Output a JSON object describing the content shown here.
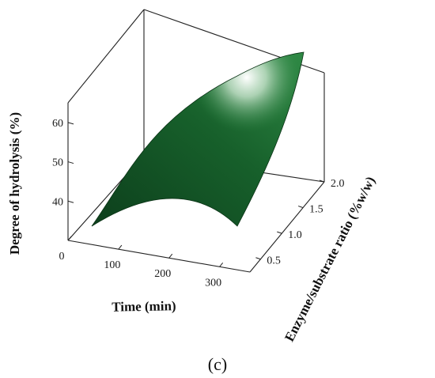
{
  "chart_data": {
    "type": "surface3d",
    "panel_label": "(c)",
    "xlabel": "Time (min)",
    "ylabel": "Enzyme/substrate ratio (%w/w)",
    "zlabel": "Degree of hydrolysis (%)",
    "x_ticks": [
      "0",
      "100",
      "200",
      "300"
    ],
    "y_ticks": [
      "0.5",
      "1.0",
      "1.5",
      "2.0"
    ],
    "z_ticks": [
      "40",
      "50",
      "60"
    ],
    "xlim": [
      0,
      360
    ],
    "ylim": [
      0.25,
      2.0
    ],
    "zlim": [
      30,
      65
    ],
    "surface_corners": [
      {
        "x": 0,
        "y": 0.25,
        "z": 36
      },
      {
        "x": 360,
        "y": 0.25,
        "z": 37
      },
      {
        "x": 0,
        "y": 2.0,
        "z": 48
      },
      {
        "x": 360,
        "y": 2.0,
        "z": 62
      }
    ],
    "surface_color": "#1f6b35"
  }
}
